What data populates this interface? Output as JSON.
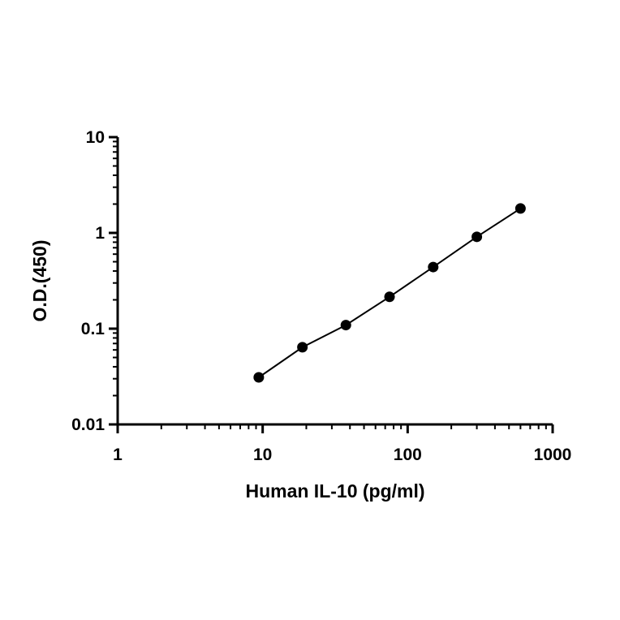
{
  "chart_data": {
    "type": "scatter",
    "title": "",
    "xlabel": "Human IL-10 (pg/ml)",
    "ylabel": "O.D.(450)",
    "x_scale": "log",
    "y_scale": "log",
    "xlim": [
      1,
      1000
    ],
    "ylim": [
      0.01,
      10
    ],
    "x_ticks": [
      {
        "value": 1,
        "label": "1"
      },
      {
        "value": 10,
        "label": "10"
      },
      {
        "value": 100,
        "label": "100"
      },
      {
        "value": 1000,
        "label": "1000"
      }
    ],
    "y_ticks": [
      {
        "value": 0.01,
        "label": "0.01"
      },
      {
        "value": 0.1,
        "label": "0.1"
      },
      {
        "value": 1,
        "label": "1"
      },
      {
        "value": 10,
        "label": "10"
      }
    ],
    "grid": false,
    "legend": "none",
    "series": [
      {
        "x": [
          9.4,
          18.8,
          37.5,
          75,
          150,
          300,
          600
        ],
        "y": [
          0.031,
          0.064,
          0.109,
          0.215,
          0.44,
          0.91,
          1.8
        ],
        "marker_color": "#000000",
        "fit_line": true
      }
    ]
  }
}
